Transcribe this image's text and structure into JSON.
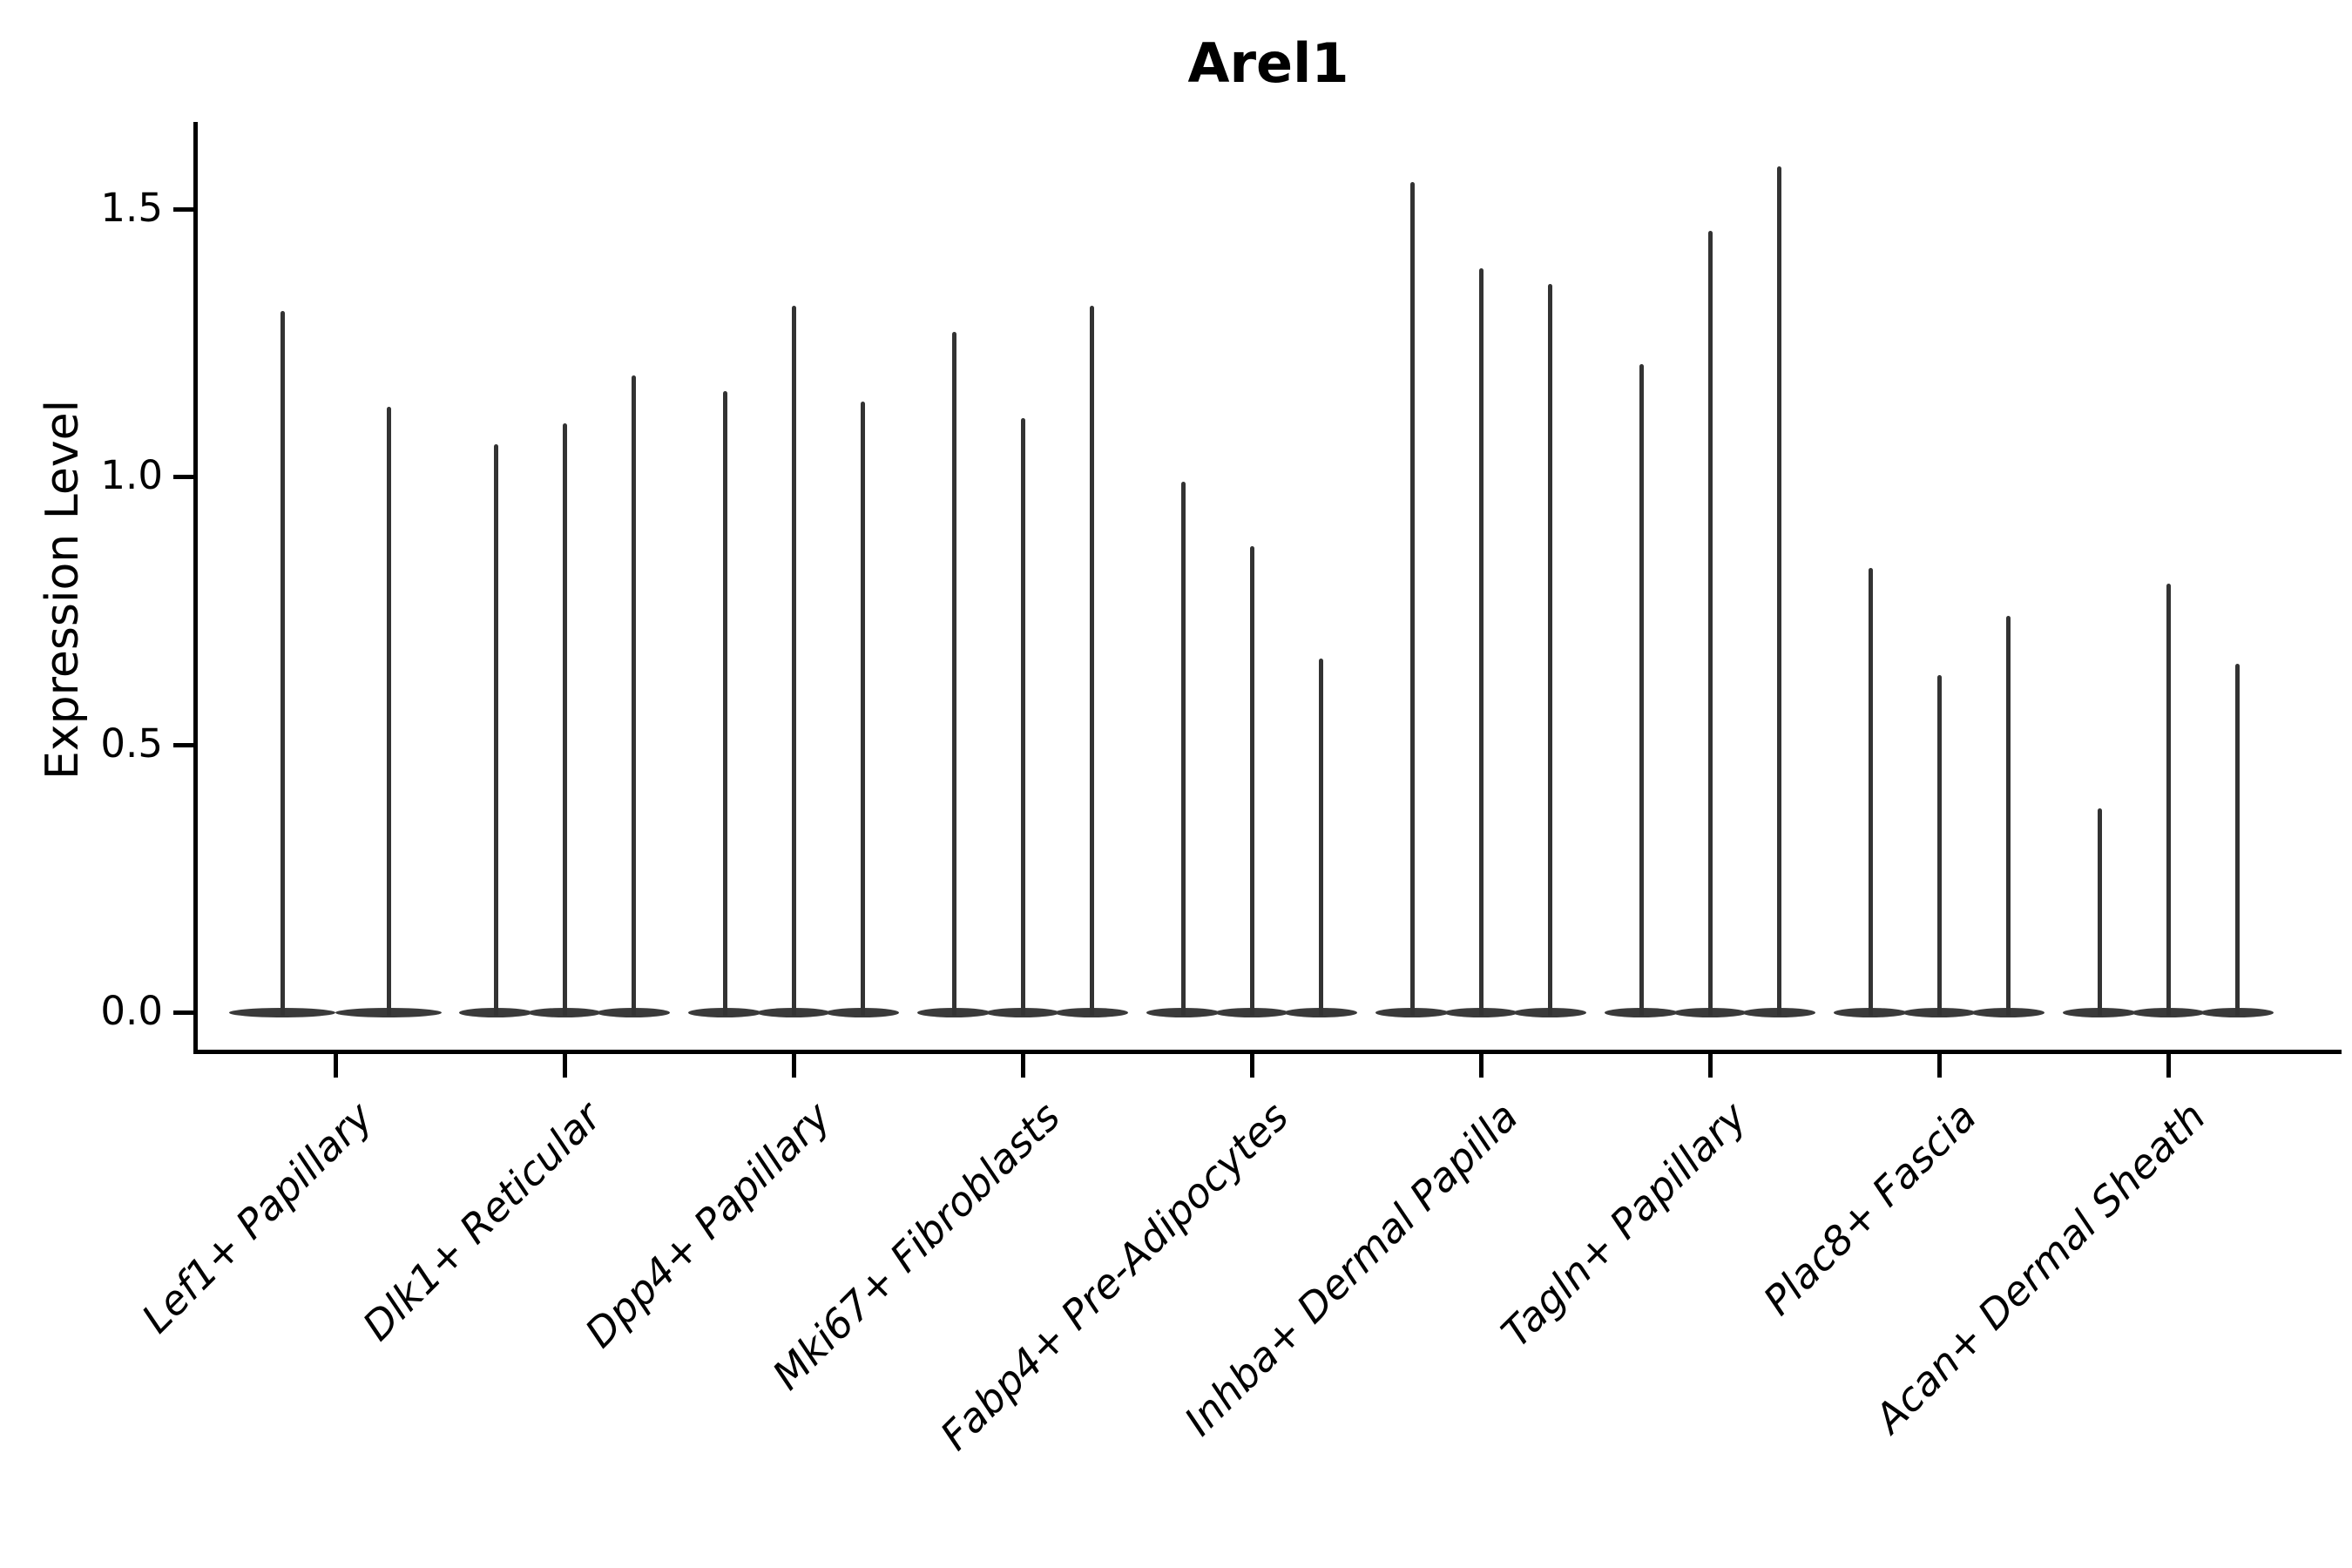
{
  "title": "Arel1",
  "chart_data": {
    "type": "violin",
    "title": "Arel1",
    "xlabel": "",
    "ylabel": "Expression Level",
    "legend": "none",
    "grid": "off",
    "ylim": [
      -0.08,
      1.66
    ],
    "yticks": [
      0.0,
      0.5,
      1.0,
      1.5
    ],
    "ytick_labels": [
      "0.0",
      "0.5",
      "1.0",
      "1.5"
    ],
    "xtick_labels_rotation_deg": 45,
    "shape_note": "Each violin is extremely narrow: density mass concentrated at expression 0 (wide flat base) with a thin spike rising to the maximum expression value.",
    "groups": [
      {
        "category": "Lef1+ Papillary",
        "violin_maxima": [
          1.31,
          1.13
        ]
      },
      {
        "category": "Dlk1+ Reticular",
        "violin_maxima": [
          1.06,
          1.1,
          1.19
        ]
      },
      {
        "category": "Dpp4+ Papillary",
        "violin_maxima": [
          1.16,
          1.32,
          1.14
        ]
      },
      {
        "category": "Mki67+ Fibroblasts",
        "violin_maxima": [
          1.27,
          1.11,
          1.32
        ]
      },
      {
        "category": "Fabp4+ Pre-Adipocytes",
        "violin_maxima": [
          0.99,
          0.87,
          0.66
        ]
      },
      {
        "category": "Inhba+ Dermal Papilla",
        "violin_maxima": [
          1.55,
          1.39,
          1.36
        ]
      },
      {
        "category": "Tagln+ Papillary",
        "violin_maxima": [
          1.21,
          1.46,
          1.58
        ]
      },
      {
        "category": "Plac8+ Fascia",
        "violin_maxima": [
          0.83,
          0.63,
          0.74
        ]
      },
      {
        "category": "Acan+ Dermal Sheath",
        "violin_maxima": [
          0.38,
          0.8,
          0.65
        ]
      }
    ]
  },
  "colors": {
    "violin_fill": "#3a3a3a",
    "spike": "#333333",
    "axis": "#000000",
    "text": "#000000",
    "background": "#ffffff"
  }
}
